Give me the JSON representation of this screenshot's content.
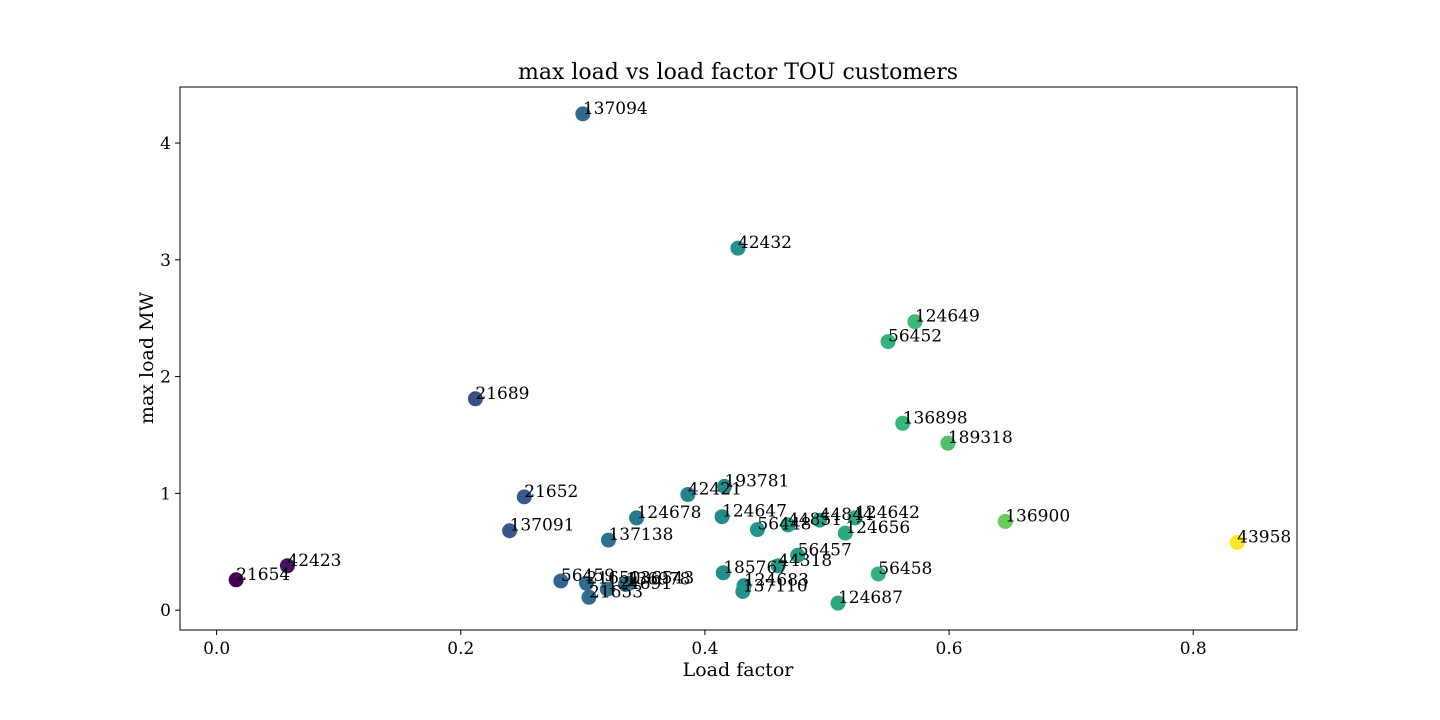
{
  "chart_data": {
    "type": "scatter",
    "title": "max load vs load factor TOU customers",
    "xlabel": "Load factor",
    "ylabel": "max load MW",
    "xlim": [
      -0.03,
      0.885
    ],
    "ylim": [
      -0.17,
      4.48
    ],
    "xticks": [
      "0.0",
      "0.2",
      "0.4",
      "0.6",
      "0.8"
    ],
    "xtick_values": [
      0.0,
      0.2,
      0.4,
      0.6,
      0.8
    ],
    "yticks": [
      "0",
      "1",
      "2",
      "3",
      "4"
    ],
    "ytick_values": [
      0,
      1,
      2,
      3,
      4
    ],
    "grid": false,
    "colormap": "viridis",
    "color_encodes": "load factor",
    "points": [
      {
        "label": "137094",
        "x": 0.3,
        "y": 4.25
      },
      {
        "label": "42432",
        "x": 0.427,
        "y": 3.1
      },
      {
        "label": "124649",
        "x": 0.572,
        "y": 2.47
      },
      {
        "label": "56452",
        "x": 0.55,
        "y": 2.3
      },
      {
        "label": "21689",
        "x": 0.212,
        "y": 1.81
      },
      {
        "label": "136898",
        "x": 0.562,
        "y": 1.6
      },
      {
        "label": "189318",
        "x": 0.599,
        "y": 1.43
      },
      {
        "label": "193781",
        "x": 0.416,
        "y": 1.06
      },
      {
        "label": "21652",
        "x": 0.252,
        "y": 0.97
      },
      {
        "label": "42421",
        "x": 0.386,
        "y": 0.99
      },
      {
        "label": "124647",
        "x": 0.414,
        "y": 0.8
      },
      {
        "label": "124678",
        "x": 0.344,
        "y": 0.79
      },
      {
        "label": "44851",
        "x": 0.468,
        "y": 0.73
      },
      {
        "label": "56448",
        "x": 0.443,
        "y": 0.69
      },
      {
        "label": "44844",
        "x": 0.494,
        "y": 0.77
      },
      {
        "label": "124642",
        "x": 0.523,
        "y": 0.79
      },
      {
        "label": "124656",
        "x": 0.515,
        "y": 0.66
      },
      {
        "label": "136900",
        "x": 0.646,
        "y": 0.76
      },
      {
        "label": "43958",
        "x": 0.836,
        "y": 0.58
      },
      {
        "label": "137091",
        "x": 0.24,
        "y": 0.68
      },
      {
        "label": "137138",
        "x": 0.321,
        "y": 0.6
      },
      {
        "label": "56457",
        "x": 0.476,
        "y": 0.47
      },
      {
        "label": "44318",
        "x": 0.46,
        "y": 0.38
      },
      {
        "label": "185767",
        "x": 0.415,
        "y": 0.32
      },
      {
        "label": "56458",
        "x": 0.542,
        "y": 0.31
      },
      {
        "label": "42423",
        "x": 0.058,
        "y": 0.38
      },
      {
        "label": "21654",
        "x": 0.016,
        "y": 0.26
      },
      {
        "label": "56459",
        "x": 0.282,
        "y": 0.25
      },
      {
        "label": "124683",
        "x": 0.432,
        "y": 0.21
      },
      {
        "label": "137110",
        "x": 0.431,
        "y": 0.16
      },
      {
        "label": "136543",
        "x": 0.338,
        "y": 0.23
      },
      {
        "label": "21650",
        "x": 0.303,
        "y": 0.23
      },
      {
        "label": "124691",
        "x": 0.32,
        "y": 0.18
      },
      {
        "label": "136978",
        "x": 0.335,
        "y": 0.22
      },
      {
        "label": "21653",
        "x": 0.305,
        "y": 0.11
      },
      {
        "label": "124687",
        "x": 0.509,
        "y": 0.06
      }
    ]
  }
}
